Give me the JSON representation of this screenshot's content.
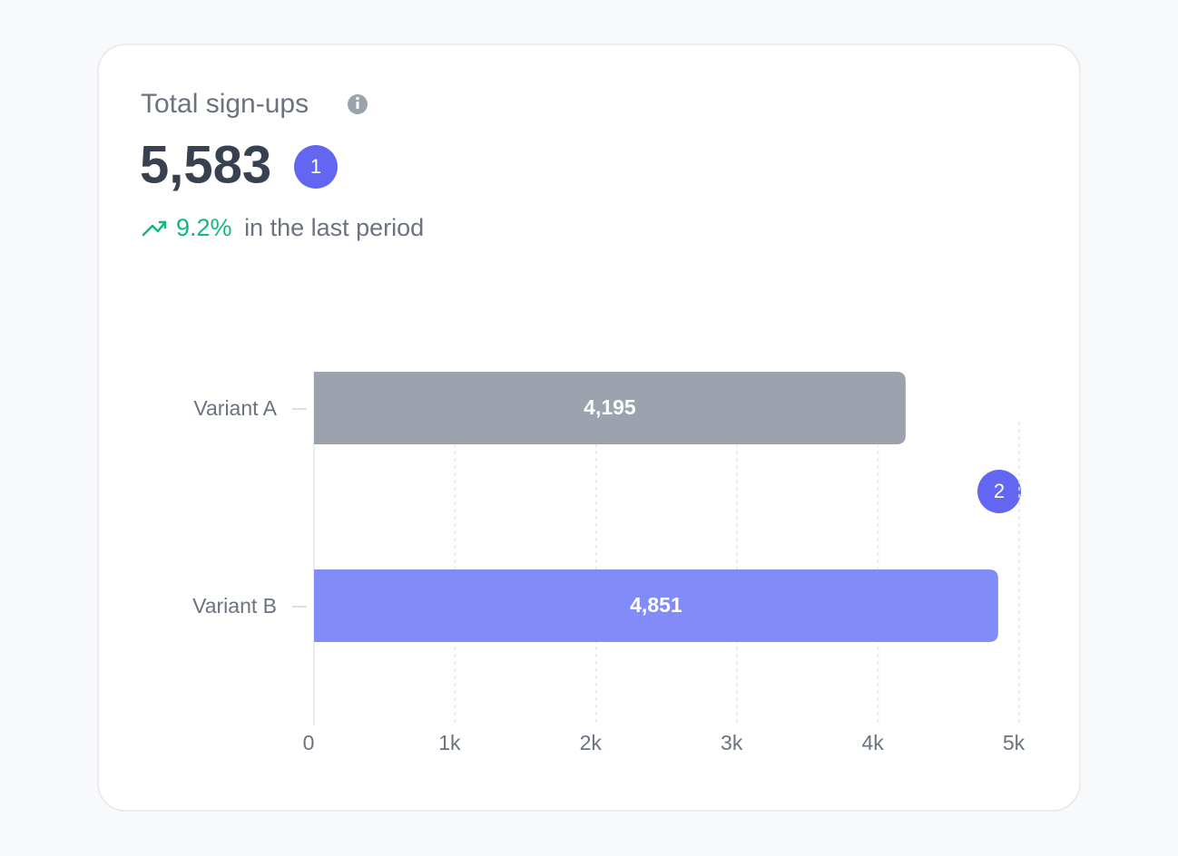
{
  "card": {
    "title": "Total sign-ups",
    "total": "5,583",
    "change": "9.2%",
    "change_text": "in the last period",
    "badges": [
      "1",
      "2"
    ]
  },
  "chart_data": {
    "type": "bar",
    "orientation": "horizontal",
    "categories": [
      "Variant A",
      "Variant B"
    ],
    "values": [
      4195,
      4851
    ],
    "value_labels": [
      "4,195",
      "4,851"
    ],
    "colors": [
      "#9ca3af",
      "#818cf8"
    ],
    "xlim": [
      0,
      5000
    ],
    "xticks": [
      0,
      {
        "value": 1000,
        "label": "1k"
      },
      {
        "value": 2000,
        "label": "2k"
      },
      {
        "value": 3000,
        "label": "3k"
      },
      {
        "value": 4000,
        "label": "4k"
      },
      {
        "value": 5000,
        "label": "5k"
      }
    ],
    "grid": true
  }
}
